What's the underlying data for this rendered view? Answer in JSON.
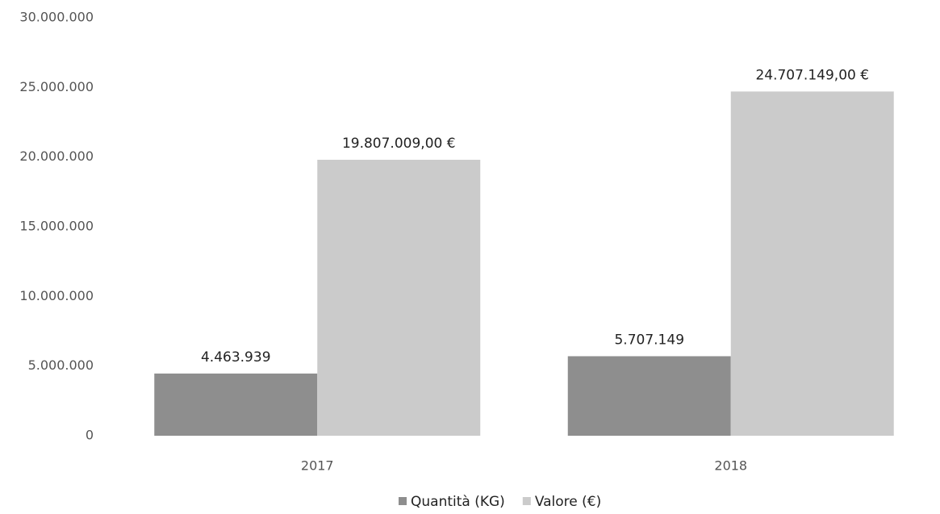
{
  "chart_data": {
    "type": "bar",
    "categories": [
      "2017",
      "2018"
    ],
    "series": [
      {
        "name": "Quantità (KG)",
        "color": "#8e8e8e",
        "values": [
          4463939,
          5707149
        ],
        "value_labels": [
          "4.463.939",
          "5.707.149"
        ]
      },
      {
        "name": "Valore (€)",
        "color": "#cbcbcb",
        "values": [
          19807009,
          24707149
        ],
        "value_labels": [
          "19.807.009,00 €",
          "24.707.149,00 €"
        ]
      }
    ],
    "ylim": [
      0,
      30000000
    ],
    "yticks": [
      0,
      {
        "value": 5000000,
        "label": "5.000.000"
      },
      {
        "value": 10000000,
        "label": "10.000.000"
      },
      {
        "value": 15000000,
        "label": "15.000.000"
      },
      {
        "value": 20000000,
        "label": "20.000.000"
      },
      {
        "value": 25000000,
        "label": "25.000.000"
      },
      {
        "value": 30000000,
        "label": "30.000.000"
      }
    ],
    "grid": false,
    "legend": "bottom"
  }
}
